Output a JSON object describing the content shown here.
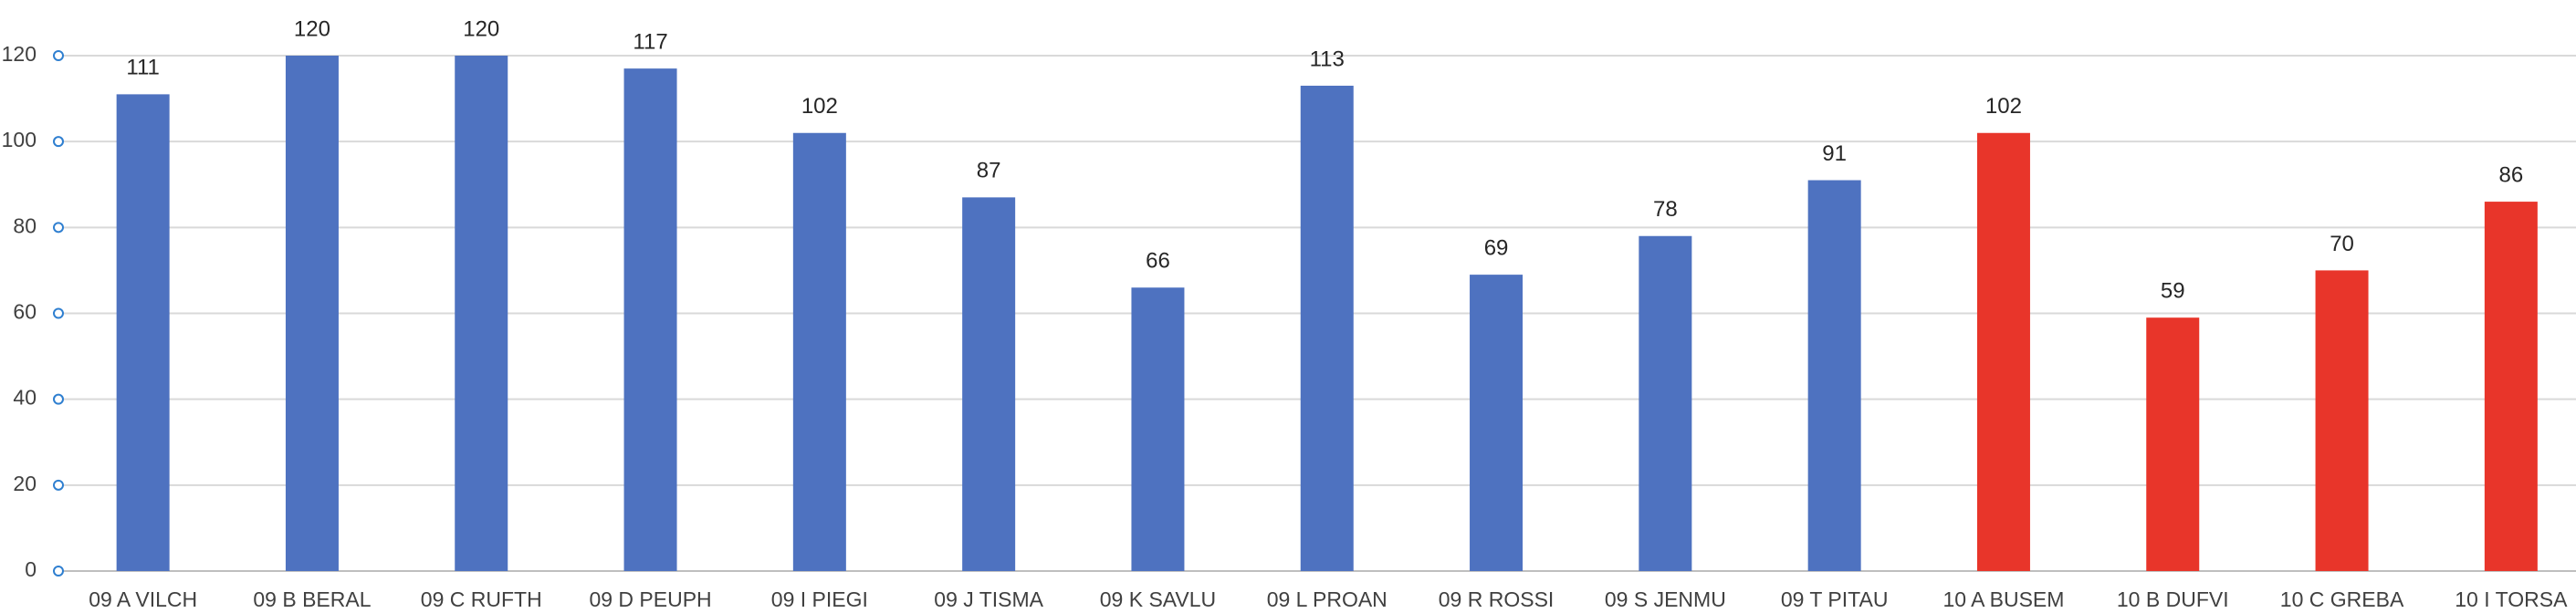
{
  "chart_data": {
    "type": "bar",
    "categories": [
      "09 A VILCH",
      "09 B BERAL",
      "09 C RUFTH",
      "09 D PEUPH",
      "09 I PIEGI",
      "09 J TISMA",
      "09 K SAVLU",
      "09 L PROAN",
      "09 R ROSSI",
      "09 S JENMU",
      "09 T PITAU",
      "10 A BUSEM",
      "10 B DUFVI",
      "10 C GREBA",
      "10 I TORSA"
    ],
    "values": [
      111,
      120,
      120,
      117,
      102,
      87,
      66,
      113,
      69,
      78,
      91,
      102,
      59,
      70,
      86
    ],
    "colors": [
      "#4e72c0",
      "#4e72c0",
      "#4e72c0",
      "#4e72c0",
      "#4e72c0",
      "#4e72c0",
      "#4e72c0",
      "#4e72c0",
      "#4e72c0",
      "#4e72c0",
      "#4e72c0",
      "#e8352a",
      "#e8352a",
      "#e8352a",
      "#e8352a"
    ],
    "ylim": [
      0,
      120
    ],
    "yticks": [
      0,
      20,
      40,
      60,
      80,
      100,
      120
    ],
    "grid": true
  }
}
